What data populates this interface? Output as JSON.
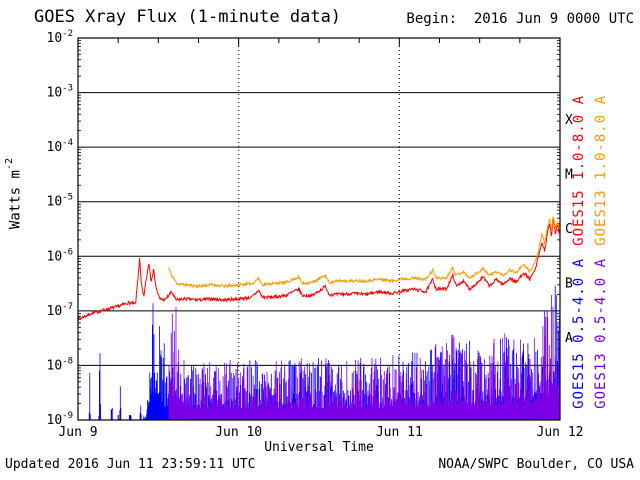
{
  "header": {
    "title": "GOES Xray Flux (1-minute data)",
    "begin": "Begin:  2016 Jun 9 0000 UTC"
  },
  "footer": {
    "updated": "Updated 2016 Jun 11 23:59:11 UTC",
    "source": "NOAA/SWPC Boulder, CO USA"
  },
  "chart_data": {
    "type": "line",
    "title": "GOES Xray Flux (1-minute data)",
    "xlabel": "Universal Time",
    "ylabel": "Watts m-2",
    "ylabel_base": "Watts m",
    "ylabel_exp": "-2",
    "x_range_hours": [
      0,
      72
    ],
    "x_ticks": [
      {
        "hour": 0,
        "label": "Jun 9"
      },
      {
        "hour": 24,
        "label": "Jun 10"
      },
      {
        "hour": 48,
        "label": "Jun 11"
      },
      {
        "hour": 72,
        "label": "Jun 12"
      }
    ],
    "y_log_range": [
      -9,
      -2
    ],
    "y_tick_exponents": [
      -2,
      -3,
      -4,
      -5,
      -6,
      -7,
      -8,
      -9
    ],
    "grid": {
      "horizontal": "solid line per decade",
      "vertical": "dotted line at each day boundary",
      "minor_ticks": "log minor ticks both y-axes, 6-hour ticks both x-axes"
    },
    "flare_classes": [
      {
        "label": "X",
        "log_center": -3.5
      },
      {
        "label": "M",
        "log_center": -4.5
      },
      {
        "label": "C",
        "log_center": -5.5
      },
      {
        "label": "B",
        "log_center": -6.5
      },
      {
        "label": "A",
        "log_center": -7.5
      }
    ],
    "right_labels": [
      {
        "text": "GOES15 1.0-8.0 A",
        "color": "#ff0000"
      },
      {
        "text": "GOES13 1.0-8.0 A",
        "color": "#ff9900"
      },
      {
        "text": "GOES15 0.5-4.0 A",
        "color": "#0000ff"
      },
      {
        "text": "GOES13 0.5-4.0 A",
        "color": "#7a00e6"
      }
    ],
    "series": [
      {
        "name": "GOES15 1.0-8.0 A",
        "satellite": "GOES15",
        "band_angstrom": "1.0-8.0",
        "color": "#ff0000",
        "style": "line",
        "seed": 7,
        "jitter_log": 0.03,
        "points_hour_log10flux": [
          [
            0,
            -7.15
          ],
          [
            2,
            -7.05
          ],
          [
            4,
            -6.98
          ],
          [
            6,
            -6.92
          ],
          [
            7.5,
            -6.85
          ],
          [
            8.6,
            -6.88
          ],
          [
            9.2,
            -6.05
          ],
          [
            9.45,
            -6.5
          ],
          [
            9.8,
            -6.75
          ],
          [
            10.6,
            -6.1
          ],
          [
            10.9,
            -6.45
          ],
          [
            11.3,
            -6.25
          ],
          [
            11.7,
            -6.6
          ],
          [
            12.2,
            -6.78
          ],
          [
            13,
            -6.8
          ],
          [
            14,
            -6.65
          ],
          [
            14.6,
            -6.8
          ],
          [
            16,
            -6.78
          ],
          [
            18,
            -6.8
          ],
          [
            20,
            -6.78
          ],
          [
            22,
            -6.8
          ],
          [
            24,
            -6.78
          ],
          [
            26,
            -6.75
          ],
          [
            27,
            -6.62
          ],
          [
            27.5,
            -6.75
          ],
          [
            29,
            -6.75
          ],
          [
            31,
            -6.72
          ],
          [
            33,
            -6.6
          ],
          [
            33.5,
            -6.72
          ],
          [
            35,
            -6.72
          ],
          [
            37,
            -6.55
          ],
          [
            37.5,
            -6.7
          ],
          [
            39,
            -6.7
          ],
          [
            41,
            -6.68
          ],
          [
            43,
            -6.7
          ],
          [
            45,
            -6.65
          ],
          [
            47,
            -6.68
          ],
          [
            48,
            -6.65
          ],
          [
            50,
            -6.6
          ],
          [
            52,
            -6.65
          ],
          [
            53,
            -6.42
          ],
          [
            53.5,
            -6.6
          ],
          [
            55,
            -6.6
          ],
          [
            56,
            -6.35
          ],
          [
            56.5,
            -6.55
          ],
          [
            57.5,
            -6.45
          ],
          [
            58.5,
            -6.6
          ],
          [
            59.5,
            -6.5
          ],
          [
            60.5,
            -6.38
          ],
          [
            61.5,
            -6.55
          ],
          [
            62.5,
            -6.42
          ],
          [
            63.5,
            -6.52
          ],
          [
            64.5,
            -6.4
          ],
          [
            65.5,
            -6.48
          ],
          [
            66.5,
            -6.3
          ],
          [
            67.5,
            -6.42
          ],
          [
            68.3,
            -6.25
          ],
          [
            68.8,
            -6.0
          ],
          [
            69.3,
            -5.75
          ],
          [
            69.7,
            -5.9
          ],
          [
            70.1,
            -5.6
          ],
          [
            70.45,
            -5.4
          ],
          [
            70.7,
            -5.65
          ],
          [
            71,
            -5.3
          ],
          [
            71.3,
            -5.6
          ],
          [
            71.6,
            -5.4
          ],
          [
            71.85,
            -5.55
          ],
          [
            72,
            -5.5
          ]
        ]
      },
      {
        "name": "GOES13 1.0-8.0 A",
        "satellite": "GOES13",
        "band_angstrom": "1.0-8.0",
        "color": "#ff9900",
        "style": "line",
        "seed": 11,
        "jitter_log": 0.025,
        "points_hour_log10flux": [
          [
            13.5,
            -6.2
          ],
          [
            14,
            -6.35
          ],
          [
            14.8,
            -6.5
          ],
          [
            16,
            -6.52
          ],
          [
            18,
            -6.55
          ],
          [
            20,
            -6.52
          ],
          [
            22,
            -6.55
          ],
          [
            24,
            -6.52
          ],
          [
            26,
            -6.5
          ],
          [
            27,
            -6.4
          ],
          [
            27.5,
            -6.52
          ],
          [
            29,
            -6.5
          ],
          [
            31,
            -6.48
          ],
          [
            33,
            -6.38
          ],
          [
            33.5,
            -6.5
          ],
          [
            35,
            -6.48
          ],
          [
            37,
            -6.35
          ],
          [
            37.5,
            -6.48
          ],
          [
            39,
            -6.45
          ],
          [
            41,
            -6.45
          ],
          [
            43,
            -6.45
          ],
          [
            45,
            -6.42
          ],
          [
            47,
            -6.45
          ],
          [
            48,
            -6.42
          ],
          [
            50,
            -6.4
          ],
          [
            52,
            -6.42
          ],
          [
            53,
            -6.25
          ],
          [
            53.5,
            -6.4
          ],
          [
            55,
            -6.4
          ],
          [
            56,
            -6.2
          ],
          [
            56.5,
            -6.35
          ],
          [
            57.5,
            -6.28
          ],
          [
            58.5,
            -6.4
          ],
          [
            59.5,
            -6.32
          ],
          [
            60.5,
            -6.22
          ],
          [
            61.5,
            -6.35
          ],
          [
            62.5,
            -6.28
          ],
          [
            63.5,
            -6.35
          ],
          [
            64.5,
            -6.25
          ],
          [
            65.5,
            -6.3
          ],
          [
            66.5,
            -6.15
          ],
          [
            67.5,
            -6.28
          ],
          [
            68.3,
            -6.1
          ],
          [
            68.8,
            -5.9
          ],
          [
            69.3,
            -5.6
          ],
          [
            69.7,
            -5.75
          ],
          [
            70.1,
            -5.5
          ],
          [
            70.45,
            -5.3
          ],
          [
            70.7,
            -5.55
          ],
          [
            71,
            -5.25
          ],
          [
            71.3,
            -5.5
          ],
          [
            71.6,
            -5.35
          ],
          [
            71.85,
            -5.45
          ],
          [
            72,
            -5.4
          ]
        ]
      },
      {
        "name": "GOES15 0.5-4.0 A",
        "satellite": "GOES15",
        "band_angstrom": "0.5-4.0",
        "color": "#0000ff",
        "style": "spikes",
        "seed": 23,
        "base_log": -9.0,
        "core_fraction": 0.18,
        "sharpness": 2.6,
        "envelope_hour_log10flux": [
          [
            0,
            -9
          ],
          [
            1.6,
            -9
          ],
          [
            1.75,
            -7.7
          ],
          [
            1.9,
            -9
          ],
          [
            3.1,
            -9
          ],
          [
            3.25,
            -7.3
          ],
          [
            3.4,
            -9
          ],
          [
            4.9,
            -9
          ],
          [
            5.05,
            -7.9
          ],
          [
            5.2,
            -9
          ],
          [
            6.15,
            -9
          ],
          [
            6.3,
            -7.45
          ],
          [
            6.45,
            -9
          ],
          [
            7.65,
            -9
          ],
          [
            7.8,
            -8.35
          ],
          [
            7.95,
            -9
          ],
          [
            9.2,
            -9
          ],
          [
            9.35,
            -7.65
          ],
          [
            9.5,
            -9
          ],
          [
            10.2,
            -8.8
          ],
          [
            10.7,
            -7.0
          ],
          [
            11.0,
            -6.35
          ],
          [
            11.6,
            -6.55
          ],
          [
            12.1,
            -6.35
          ],
          [
            12.5,
            -7.1
          ],
          [
            13,
            -7.7
          ],
          [
            14,
            -7.95
          ],
          [
            16,
            -7.85
          ],
          [
            18,
            -7.95
          ],
          [
            20,
            -7.85
          ],
          [
            22,
            -7.9
          ],
          [
            24,
            -7.85
          ],
          [
            26,
            -7.9
          ],
          [
            28,
            -7.85
          ],
          [
            30,
            -7.9
          ],
          [
            32,
            -7.85
          ],
          [
            34,
            -7.9
          ],
          [
            36,
            -7.85
          ],
          [
            38,
            -7.9
          ],
          [
            40,
            -7.9
          ],
          [
            42,
            -7.85
          ],
          [
            44,
            -7.9
          ],
          [
            46,
            -7.85
          ],
          [
            48,
            -7.8
          ],
          [
            50,
            -7.75
          ],
          [
            52,
            -7.7
          ],
          [
            54,
            -7.6
          ],
          [
            56,
            -7.45
          ],
          [
            58,
            -7.55
          ],
          [
            60,
            -7.45
          ],
          [
            62,
            -7.55
          ],
          [
            64,
            -7.45
          ],
          [
            66,
            -7.5
          ],
          [
            68,
            -7.45
          ],
          [
            69,
            -7.05
          ],
          [
            70,
            -6.85
          ],
          [
            70.5,
            -6.55
          ],
          [
            71,
            -6.45
          ],
          [
            71.5,
            -6.4
          ],
          [
            72,
            -6.45
          ]
        ]
      },
      {
        "name": "GOES13 0.5-4.0 A",
        "satellite": "GOES13",
        "band_angstrom": "0.5-4.0",
        "color": "#7a00e6",
        "style": "spikes",
        "seed": 41,
        "base_log": -9.0,
        "core_fraction": 0.18,
        "sharpness": 2.6,
        "envelope_hour_log10flux": [
          [
            13.6,
            -7.6
          ],
          [
            13.9,
            -6.8
          ],
          [
            14.2,
            -6.55
          ],
          [
            14.6,
            -6.7
          ],
          [
            15,
            -7.0
          ],
          [
            15.5,
            -7.35
          ],
          [
            16.2,
            -7.6
          ],
          [
            17,
            -7.8
          ],
          [
            18,
            -7.9
          ],
          [
            20,
            -7.85
          ],
          [
            22,
            -7.9
          ],
          [
            24,
            -7.85
          ],
          [
            26,
            -7.88
          ],
          [
            28,
            -7.82
          ],
          [
            30,
            -7.88
          ],
          [
            32,
            -7.82
          ],
          [
            34,
            -7.86
          ],
          [
            36,
            -7.8
          ],
          [
            38,
            -7.86
          ],
          [
            40,
            -7.86
          ],
          [
            42,
            -7.8
          ],
          [
            44,
            -7.86
          ],
          [
            46,
            -7.8
          ],
          [
            48,
            -7.76
          ],
          [
            50,
            -7.7
          ],
          [
            52,
            -7.66
          ],
          [
            54,
            -7.56
          ],
          [
            56,
            -7.4
          ],
          [
            58,
            -7.5
          ],
          [
            60,
            -7.4
          ],
          [
            62,
            -7.5
          ],
          [
            64,
            -7.4
          ],
          [
            66,
            -7.46
          ],
          [
            68,
            -7.4
          ],
          [
            69,
            -7.0
          ],
          [
            70,
            -6.9
          ],
          [
            70.5,
            -6.6
          ],
          [
            71,
            -6.5
          ],
          [
            71.5,
            -6.45
          ],
          [
            72,
            -6.5
          ]
        ]
      }
    ]
  }
}
